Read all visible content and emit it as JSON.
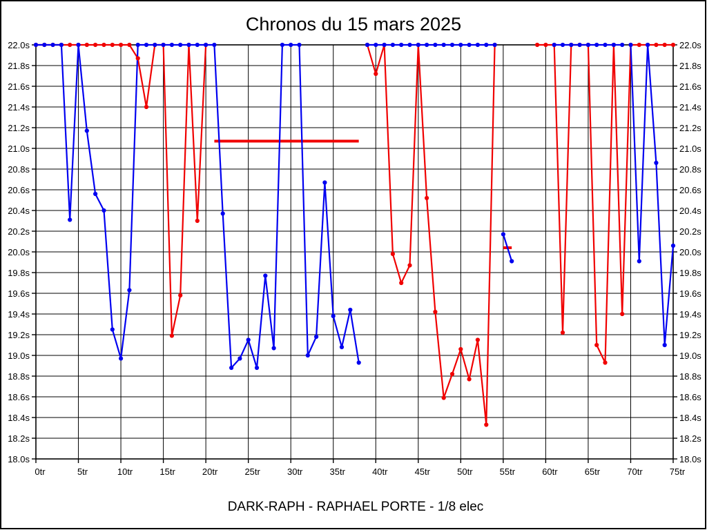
{
  "chart_data": {
    "type": "line",
    "title": "Chronos du 15 mars 2025",
    "subtitle": "DARK-RAPH - RAPHAEL PORTE - 1/8 elec",
    "x_axis": {
      "label_unit": "tr",
      "min": 0,
      "max": 75,
      "tick_step": 5,
      "tick_labels": [
        "0tr",
        "5tr",
        "10tr",
        "15tr",
        "20tr",
        "25tr",
        "30tr",
        "35tr",
        "40tr",
        "45tr",
        "50tr",
        "55tr",
        "60tr",
        "65tr",
        "70tr",
        "75tr"
      ]
    },
    "y_axis": {
      "label_unit": "s",
      "min": 18.0,
      "max": 22.0,
      "tick_step": 0.2,
      "tick_labels": [
        "22.0s",
        "21.8s",
        "21.6s",
        "21.4s",
        "21.2s",
        "21.0s",
        "20.8s",
        "20.6s",
        "20.4s",
        "20.2s",
        "20.0s",
        "19.8s",
        "19.6s",
        "19.4s",
        "19.2s",
        "19.0s",
        "18.8s",
        "18.6s",
        "18.4s",
        "18.2s",
        "18.0s"
      ],
      "clamp_value": 22.0
    },
    "grid": true,
    "legend_position": "none",
    "series": [
      {
        "name": "rouge",
        "color": "#f00000",
        "segments": [
          [
            [
              0,
              22
            ],
            [
              1,
              22
            ],
            [
              2,
              22
            ],
            [
              3,
              22
            ],
            [
              4,
              22
            ],
            [
              5,
              22
            ],
            [
              6,
              22
            ],
            [
              7,
              22
            ],
            [
              8,
              22
            ],
            [
              9,
              22
            ],
            [
              10,
              22
            ],
            [
              11,
              22
            ],
            [
              12,
              21.87
            ],
            [
              13,
              21.4
            ],
            [
              14,
              22
            ],
            [
              15,
              22
            ],
            [
              16,
              19.19
            ],
            [
              17,
              19.58
            ],
            [
              18,
              22
            ],
            [
              19,
              20.3
            ],
            [
              20,
              22
            ]
          ],
          [
            [
              39,
              22
            ],
            [
              40,
              21.72
            ],
            [
              41,
              22
            ],
            [
              42,
              19.98
            ],
            [
              43,
              19.7
            ],
            [
              44,
              19.87
            ],
            [
              45,
              22
            ],
            [
              46,
              20.52
            ],
            [
              47,
              19.42
            ],
            [
              48,
              18.59
            ],
            [
              49,
              18.82
            ],
            [
              50,
              19.06
            ],
            [
              51,
              18.77
            ],
            [
              52,
              19.15
            ],
            [
              53,
              18.33
            ],
            [
              54,
              22
            ]
          ],
          [
            [
              59,
              22
            ],
            [
              60,
              22
            ],
            [
              61,
              22
            ],
            [
              62,
              19.22
            ],
            [
              63,
              22
            ],
            [
              64,
              22
            ],
            [
              65,
              22
            ],
            [
              66,
              19.1
            ],
            [
              67,
              18.93
            ],
            [
              68,
              22
            ],
            [
              69,
              19.4
            ],
            [
              70,
              22
            ],
            [
              71,
              22
            ],
            [
              72,
              22
            ],
            [
              73,
              22
            ],
            [
              74,
              22
            ],
            [
              75,
              22
            ]
          ]
        ],
        "guide_segments": [
          {
            "from_lap": 21,
            "to_lap": 38,
            "value": 21.07
          },
          {
            "from_lap": 55,
            "to_lap": 56,
            "value": 20.04
          }
        ]
      },
      {
        "name": "bleu",
        "color": "#0000f0",
        "segments": [
          [
            [
              0,
              22
            ],
            [
              1,
              22
            ],
            [
              2,
              22
            ],
            [
              3,
              22
            ],
            [
              4,
              20.31
            ],
            [
              5,
              22
            ],
            [
              6,
              21.17
            ],
            [
              7,
              20.56
            ],
            [
              8,
              20.4
            ],
            [
              9,
              19.25
            ],
            [
              10,
              18.97
            ],
            [
              11,
              19.63
            ],
            [
              12,
              22
            ],
            [
              13,
              22
            ],
            [
              14,
              22
            ],
            [
              15,
              22
            ],
            [
              16,
              22
            ],
            [
              17,
              22
            ],
            [
              18,
              22
            ],
            [
              19,
              22
            ],
            [
              20,
              22
            ],
            [
              21,
              22
            ],
            [
              22,
              20.37
            ],
            [
              23,
              18.88
            ],
            [
              24,
              18.97
            ],
            [
              25,
              19.15
            ],
            [
              26,
              18.88
            ],
            [
              27,
              19.77
            ],
            [
              28,
              19.07
            ],
            [
              29,
              22
            ],
            [
              30,
              22
            ],
            [
              31,
              22
            ],
            [
              32,
              19.0
            ],
            [
              33,
              19.18
            ],
            [
              34,
              20.67
            ],
            [
              35,
              19.38
            ],
            [
              36,
              19.08
            ],
            [
              37,
              19.44
            ],
            [
              38,
              18.93
            ]
          ],
          [
            [
              39,
              22
            ],
            [
              40,
              22
            ],
            [
              41,
              22
            ],
            [
              42,
              22
            ],
            [
              43,
              22
            ],
            [
              44,
              22
            ],
            [
              45,
              22
            ],
            [
              46,
              22
            ],
            [
              47,
              22
            ],
            [
              48,
              22
            ],
            [
              49,
              22
            ],
            [
              50,
              22
            ],
            [
              51,
              22
            ],
            [
              52,
              22
            ],
            [
              53,
              22
            ],
            [
              54,
              22
            ]
          ],
          [
            [
              55,
              20.17
            ],
            [
              56,
              19.91
            ]
          ],
          [
            [
              61,
              22
            ],
            [
              62,
              22
            ],
            [
              63,
              22
            ],
            [
              64,
              22
            ],
            [
              65,
              22
            ],
            [
              66,
              22
            ],
            [
              67,
              22
            ],
            [
              68,
              22
            ],
            [
              69,
              22
            ]
          ],
          [
            [
              70,
              22
            ],
            [
              71,
              19.91
            ],
            [
              72,
              22
            ],
            [
              73,
              20.86
            ],
            [
              74,
              19.1
            ],
            [
              75,
              20.06
            ]
          ]
        ],
        "guide_segments": []
      }
    ]
  },
  "style": {
    "grid_color": "#000000",
    "frame_color": "#000000",
    "background": "#ffffff"
  }
}
